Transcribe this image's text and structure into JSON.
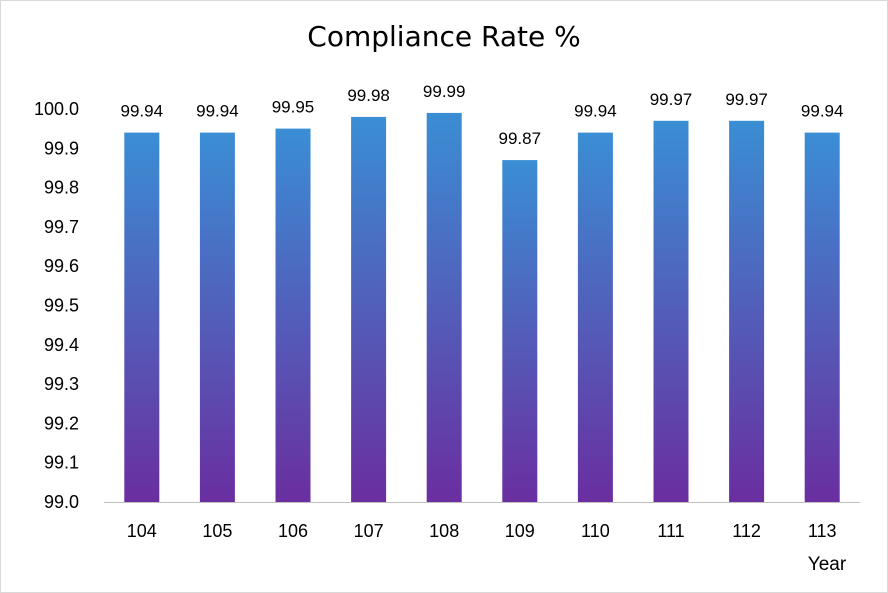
{
  "chart_data": {
    "type": "bar",
    "title": "Compliance Rate %",
    "xlabel": "Year",
    "ylabel": "",
    "categories": [
      "104",
      "105",
      "106",
      "107",
      "108",
      "109",
      "110",
      "111",
      "112",
      "113"
    ],
    "values": [
      99.94,
      99.94,
      99.95,
      99.98,
      99.99,
      99.87,
      99.94,
      99.97,
      99.97,
      99.94
    ],
    "data_labels": [
      "99.94",
      "99.94",
      "99.95",
      "99.98",
      "99.99",
      "99.87",
      "99.94",
      "99.97",
      "99.97",
      "99.94"
    ],
    "ylim": [
      99.0,
      100.0
    ],
    "yticks": [
      "99.0",
      "99.1",
      "99.2",
      "99.3",
      "99.4",
      "99.5",
      "99.6",
      "99.7",
      "99.8",
      "99.9",
      "100.0"
    ],
    "grid": false,
    "legend": "none",
    "colors": {
      "bar_top": "#3a8ed4",
      "bar_bottom": "#6a2ea0",
      "axis": "#bfbfbf"
    }
  }
}
